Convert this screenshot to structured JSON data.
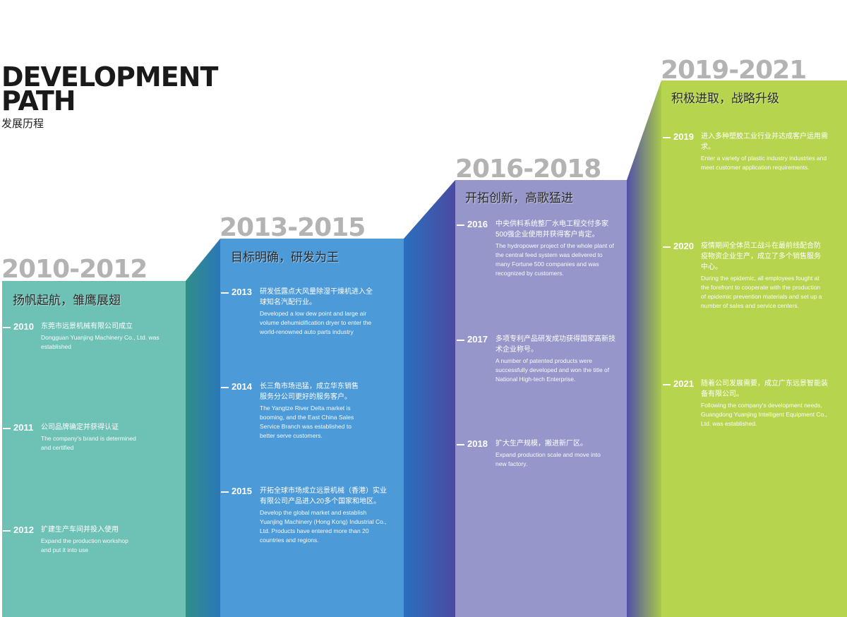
{
  "title": {
    "main": "DEVELOPMENT\nPATH",
    "sub": "发展历程"
  },
  "colors": {
    "stage1": "#6ec1b5",
    "stage2": "#4c9ad8",
    "stage3": "#9696ca",
    "stage4": "#b7d44e",
    "range_text": "#b3b3b3"
  },
  "stages": [
    {
      "range": "2010-2012",
      "slogan": "扬帆起航，雏鹰展翅",
      "entries": [
        {
          "year": "2010",
          "cn": "东莞市远景机械有限公司成立",
          "en": "Dongguan Yuanjing Machinery Co., Ltd. was established"
        },
        {
          "year": "2011",
          "cn": "公司品牌确定并获得认证",
          "en": "The company's brand is determined and certified"
        },
        {
          "year": "2012",
          "cn": "扩建生产车间并投入使用",
          "en": "Expand the production workshop and put it into use"
        }
      ]
    },
    {
      "range": "2013-2015",
      "slogan": "目标明确，研发为王",
      "entries": [
        {
          "year": "2013",
          "cn": "研发低露点大风量除湿干燥机进入全球知名汽配行业。",
          "en": "Developed a low dew point and large air volume dehumidification dryer to enter the world-renowned auto parts industry"
        },
        {
          "year": "2014",
          "cn": "长三角市场迅猛，成立华东销售服务分公司更好的服务客户。",
          "en": "The Yangtze River Delta market is booming, and the East China Sales Service Branch was established to better serve customers."
        },
        {
          "year": "2015",
          "cn": "开拓全球市场成立远景机械（香港）实业有限公司产品进入20多个国家和地区。",
          "en": "Develop the global market and establish Yuanjing Machinery (Hong Kong) Industrial Co., Ltd. Products have entered more than 20 countries and regions."
        }
      ]
    },
    {
      "range": "2016-2018",
      "slogan": "开拓创新，高歌猛进",
      "entries": [
        {
          "year": "2016",
          "cn": "中央供料系统整厂水电工程交付多家500强企业使用并获得客户肯定。",
          "en": "The hydropower project of the whole plant of the central feed system was delivered to many Fortune 500 companies and was recognized by customers."
        },
        {
          "year": "2017",
          "cn": "多项专利产品研发成功获得国家高新技术企业称号。",
          "en": "A number of patented products were successfully developed and won the title of National High-tech Enterprise."
        },
        {
          "year": "2018",
          "cn": "扩大生产规模，搬进新厂区。",
          "en": "Expand production scale and move into new factory."
        }
      ]
    },
    {
      "range": "2019-2021",
      "slogan": "积极进取，战略升级",
      "entries": [
        {
          "year": "2019",
          "cn": "进入多种塑胶工业行业并达成客户运用需求。",
          "en": "Enter a variety of plastic industry industries and meet customer application requirements."
        },
        {
          "year": "2020",
          "cn": "疫情期间全体员工战斗在最前线配合防疫物资企业生产，成立了多个销售服务中心。",
          "en": "During the epidemic, all employees fought at the forefront to cooperate with the production of epidemic prevention materials and set up a number of sales and service centers."
        },
        {
          "year": "2021",
          "cn": "随着公司发展需要，成立广东远景智能装备有限公司。",
          "en": "Following the company's development needs, Guangdong Yuanjing Intelligent Equipment Co., Ltd. was established."
        }
      ]
    }
  ]
}
